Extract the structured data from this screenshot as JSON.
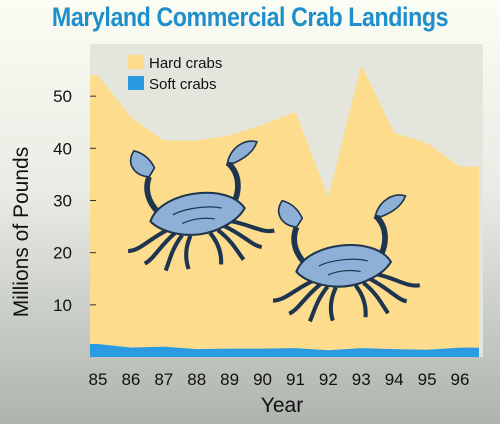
{
  "colors": {
    "title": "#1f8fcc",
    "hard_crabs": "#fddc8e",
    "soft_crabs": "#2a9be0",
    "plot_bg": "#e4e6de",
    "crab_fill": "#8fb0d6",
    "crab_stroke": "#1e3550"
  },
  "chart_data": {
    "type": "area",
    "title": "Maryland Commercial Crab Landings",
    "xlabel": "Year",
    "ylabel": "Millions of Pounds",
    "x": [
      "85",
      "86",
      "87",
      "88",
      "89",
      "90",
      "91",
      "92",
      "93",
      "94",
      "95",
      "96"
    ],
    "ylim": [
      0,
      60
    ],
    "yticks": [
      "10",
      "20",
      "30",
      "40",
      "50"
    ],
    "grid": false,
    "legend_position": "top-left",
    "stacked": true,
    "series": [
      {
        "name": "Soft crabs",
        "values": [
          2.5,
          1.8,
          2.0,
          1.5,
          1.6,
          1.6,
          1.7,
          1.3,
          1.7,
          1.5,
          1.4,
          1.8
        ]
      },
      {
        "name": "Hard crabs",
        "values": [
          51.5,
          44.2,
          39.5,
          40.0,
          40.9,
          42.9,
          45.3,
          29.3,
          54.3,
          41.5,
          39.6,
          34.7
        ]
      }
    ]
  },
  "decorations": {
    "icons": [
      "blue-crab-illustration",
      "blue-crab-illustration"
    ]
  }
}
